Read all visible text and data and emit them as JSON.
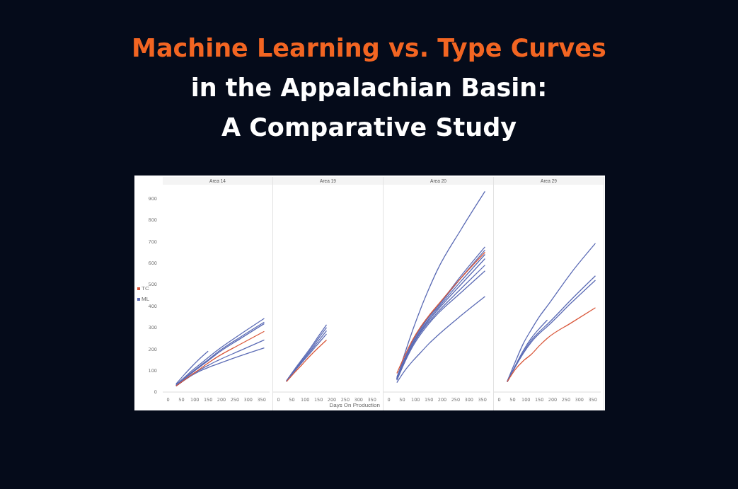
{
  "chart_data": [
    {
      "type": "line",
      "title": "Area 14",
      "annotations": [
        "Machine Learning vs. Type Curves",
        "in the Appalachian Basin: A Comparative Study"
      ],
      "legend": "left",
      "grid": false,
      "marker": "none",
      "tick_labels": "xy",
      "x": [
        30,
        60,
        90,
        120,
        150,
        180,
        270,
        360
      ],
      "xlim": [
        -20,
        380
      ],
      "xticks": [
        0,
        50,
        100,
        150,
        200,
        250,
        300,
        350
      ],
      "ylim": [
        0,
        1000
      ],
      "yticks": [
        0,
        100,
        200,
        300,
        400,
        500,
        600,
        700,
        800,
        900
      ],
      "series": [
        {
          "name": "TC",
          "color": "#d9573a",
          "values": [
            28,
            55,
            82,
            108,
            135,
            160,
            222,
            282
          ]
        },
        {
          "name": "ML",
          "color": "#5b6bb5",
          "values": [
            35,
            67,
            100,
            130,
            160,
            190,
            268,
            342
          ]
        },
        {
          "color": "#5b6bb5",
          "values": [
            32,
            62,
            93,
            122,
            150,
            180,
            255,
            325
          ]
        },
        {
          "color": "#5b6bb5",
          "values": [
            30,
            60,
            90,
            118,
            146,
            175,
            248,
            318
          ]
        },
        {
          "color": "#5b6bb5",
          "values": [
            30,
            57,
            82,
            104,
            124,
            143,
            193,
            242
          ]
        },
        {
          "color": "#5b6bb5",
          "values": [
            28,
            54,
            78,
            98,
            114,
            128,
            168,
            205
          ]
        },
        {
          "color": "#5b6bb5",
          "values": [
            38,
            80,
            120,
            157,
            190,
            null,
            null,
            null
          ]
        },
        {
          "color": "#5b6bb5",
          "values": [
            32,
            62,
            92,
            120,
            148,
            175,
            null,
            null
          ]
        }
      ]
    },
    {
      "type": "line",
      "title": "Area 19",
      "xlabel": "Days On Production",
      "grid": false,
      "marker": "none",
      "tick_labels": "x",
      "x": [
        30,
        60,
        90,
        120,
        150,
        180
      ],
      "xlim": [
        -20,
        380
      ],
      "xticks": [
        0,
        50,
        100,
        150,
        200,
        250,
        300,
        350
      ],
      "ylim": [
        0,
        1000
      ],
      "yticks": [
        0,
        100,
        200,
        300,
        400,
        500,
        600,
        700,
        800,
        900
      ],
      "series": [
        {
          "color": "#d9573a",
          "values": [
            48,
            90,
            130,
            170,
            207,
            242
          ]
        },
        {
          "color": "#5b6bb5",
          "values": [
            52,
            105,
            155,
            205,
            260,
            313
          ]
        },
        {
          "color": "#5b6bb5",
          "values": [
            51,
            102,
            150,
            198,
            250,
            300
          ]
        },
        {
          "color": "#5b6bb5",
          "values": [
            50,
            99,
            145,
            190,
            238,
            285
          ]
        },
        {
          "color": "#5b6bb5",
          "values": [
            50,
            96,
            140,
            183,
            227,
            270
          ]
        }
      ]
    },
    {
      "type": "line",
      "title": "Area 20",
      "grid": false,
      "marker": "none",
      "tick_labels": "x",
      "x": [
        30,
        60,
        90,
        120,
        150,
        180,
        270,
        360
      ],
      "xlim": [
        -20,
        380
      ],
      "xticks": [
        0,
        50,
        100,
        150,
        200,
        250,
        300,
        350
      ],
      "ylim": [
        0,
        1000
      ],
      "yticks": [
        0,
        100,
        200,
        300,
        400,
        500,
        600,
        700,
        800,
        900
      ],
      "series": [
        {
          "color": "#d9573a",
          "values": [
            87,
            170,
            245,
            305,
            355,
            400,
            530,
            650
          ]
        },
        {
          "color": "#5b6bb5",
          "values": [
            60,
            180,
            290,
            390,
            480,
            563,
            755,
            933
          ]
        },
        {
          "color": "#5b6bb5",
          "values": [
            70,
            160,
            240,
            300,
            352,
            395,
            540,
            675
          ]
        },
        {
          "color": "#5b6bb5",
          "values": [
            65,
            155,
            235,
            295,
            348,
            392,
            530,
            660
          ]
        },
        {
          "color": "#5b6bb5",
          "values": [
            62,
            150,
            228,
            288,
            340,
            385,
            515,
            640
          ]
        },
        {
          "color": "#5b6bb5",
          "values": [
            60,
            148,
            224,
            283,
            333,
            378,
            500,
            620
          ]
        },
        {
          "color": "#5b6bb5",
          "values": [
            58,
            145,
            220,
            278,
            325,
            368,
            480,
            590
          ]
        },
        {
          "color": "#5b6bb5",
          "values": [
            55,
            140,
            213,
            270,
            318,
            360,
            462,
            563
          ]
        },
        {
          "color": "#5b6bb5",
          "values": [
            44,
            100,
            145,
            185,
            225,
            260,
            355,
            444
          ]
        }
      ]
    },
    {
      "type": "line",
      "title": "Area 29",
      "grid": false,
      "marker": "none",
      "tick_labels": "x",
      "x": [
        30,
        60,
        90,
        120,
        150,
        180,
        270,
        360
      ],
      "xlim": [
        -20,
        380
      ],
      "xticks": [
        0,
        50,
        100,
        150,
        200,
        250,
        300,
        350
      ],
      "ylim": [
        0,
        1000
      ],
      "yticks": [
        0,
        100,
        200,
        300,
        400,
        500,
        600,
        700,
        800,
        900
      ],
      "series": [
        {
          "color": "#d9573a",
          "values": [
            48,
            105,
            145,
            175,
            215,
            250,
            322,
            392
          ]
        },
        {
          "color": "#5b6bb5",
          "values": [
            50,
            140,
            225,
            290,
            350,
            400,
            555,
            691
          ]
        },
        {
          "color": "#5b6bb5",
          "values": [
            48,
            120,
            185,
            240,
            280,
            315,
            430,
            540
          ]
        },
        {
          "color": "#5b6bb5",
          "values": [
            48,
            117,
            180,
            232,
            272,
            305,
            415,
            520
          ]
        },
        {
          "color": "#5b6bb5",
          "values": [
            48,
            122,
            192,
            250,
            295,
            335,
            null,
            null
          ]
        }
      ]
    }
  ]
}
